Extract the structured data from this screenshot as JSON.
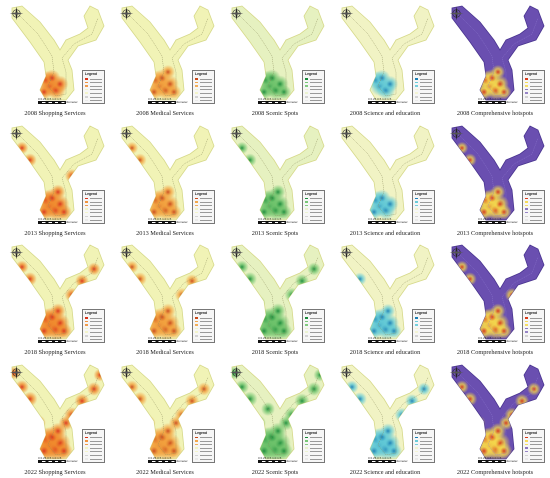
{
  "figure": {
    "columns": [
      {
        "theme": "shopping",
        "fill": "#f1f3b6",
        "hot": "#d9321a",
        "mid": "#f08a2c"
      },
      {
        "theme": "medical",
        "fill": "#f1f3b6",
        "hot": "#c9481a",
        "mid": "#f2a03c"
      },
      {
        "theme": "scenic",
        "fill": "#e6f1c0",
        "hot": "#1a8a3a",
        "mid": "#6cc26a"
      },
      {
        "theme": "science",
        "fill": "#f1f3c4",
        "hot": "#1a7fb5",
        "mid": "#5ec8d6"
      },
      {
        "theme": "comprehensive",
        "fill": "#6a4fb0",
        "hot": "#d93a1a",
        "mid": "#f5d84a"
      }
    ],
    "legend_title": "Legend",
    "scale_numbers": "0 0.25 0.5    1.0    1.5",
    "scale_unit": "Kilometer",
    "panels": [
      {
        "year": "2008",
        "col": 0,
        "caption": "2008 Shopping Services",
        "intensity": 0.35
      },
      {
        "year": "2008",
        "col": 1,
        "caption": "2008 Medical Services",
        "intensity": 0.45
      },
      {
        "year": "2008",
        "col": 2,
        "caption": "2008 Scenic Spots",
        "intensity": 0.4
      },
      {
        "year": "2008",
        "col": 3,
        "caption": "2008 Science and education",
        "intensity": 0.3
      },
      {
        "year": "2008",
        "col": 4,
        "caption": "2008 Comprehensive hotspots",
        "intensity": 0.45
      },
      {
        "year": "2013",
        "col": 0,
        "caption": "2013 Shopping Services",
        "intensity": 0.6
      },
      {
        "year": "2013",
        "col": 1,
        "caption": "2013 Medical Services",
        "intensity": 0.55
      },
      {
        "year": "2013",
        "col": 2,
        "caption": "2013 Scenic Spots",
        "intensity": 0.55
      },
      {
        "year": "2013",
        "col": 3,
        "caption": "2013 Science and education",
        "intensity": 0.35
      },
      {
        "year": "2013",
        "col": 4,
        "caption": "2013 Comprehensive hotspots",
        "intensity": 0.55
      },
      {
        "year": "2018",
        "col": 0,
        "caption": "2018 Shopping Services",
        "intensity": 0.7
      },
      {
        "year": "2018",
        "col": 1,
        "caption": "2018 Medical Services",
        "intensity": 0.65
      },
      {
        "year": "2018",
        "col": 2,
        "caption": "2018 Scenic Spots",
        "intensity": 0.75
      },
      {
        "year": "2018",
        "col": 3,
        "caption": "2018 Science and education",
        "intensity": 0.5
      },
      {
        "year": "2018",
        "col": 4,
        "caption": "2018 Comprehensive hotspots",
        "intensity": 0.6
      },
      {
        "year": "2022",
        "col": 0,
        "caption": "2022 Shopping Services",
        "intensity": 0.95
      },
      {
        "year": "2022",
        "col": 1,
        "caption": "2022 Medical Services",
        "intensity": 0.85
      },
      {
        "year": "2022",
        "col": 2,
        "caption": "2022 Scenic Spots",
        "intensity": 1.0
      },
      {
        "year": "2022",
        "col": 3,
        "caption": "2022 Science and education",
        "intensity": 0.7
      },
      {
        "year": "2022",
        "col": 4,
        "caption": "2022 Comprehensive hotspots",
        "intensity": 0.85
      }
    ]
  }
}
